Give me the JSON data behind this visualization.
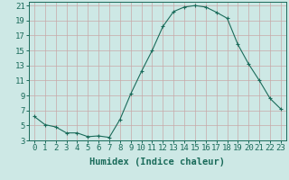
{
  "x": [
    0,
    1,
    2,
    3,
    4,
    5,
    6,
    7,
    8,
    9,
    10,
    11,
    12,
    13,
    14,
    15,
    16,
    17,
    18,
    19,
    20,
    21,
    22,
    23
  ],
  "y": [
    6.2,
    5.1,
    4.8,
    4.0,
    4.0,
    3.5,
    3.6,
    3.4,
    5.8,
    9.2,
    12.2,
    15.0,
    18.2,
    20.2,
    20.8,
    21.0,
    20.8,
    20.1,
    19.3,
    15.8,
    13.2,
    11.0,
    8.6,
    7.2
  ],
  "line_color": "#1a6b5a",
  "marker": "+",
  "marker_size": 3,
  "bg_color": "#cde8e5",
  "grid_color": "#c8a8a8",
  "xlabel": "Humidex (Indice chaleur)",
  "xlabel_fontsize": 7.5,
  "tick_fontsize": 6.5,
  "ylim": [
    3,
    21.5
  ],
  "xlim": [
    -0.5,
    23.5
  ],
  "yticks": [
    3,
    5,
    7,
    9,
    11,
    13,
    15,
    17,
    19,
    21
  ],
  "xticks": [
    0,
    1,
    2,
    3,
    4,
    5,
    6,
    7,
    8,
    9,
    10,
    11,
    12,
    13,
    14,
    15,
    16,
    17,
    18,
    19,
    20,
    21,
    22,
    23
  ],
  "tick_color": "#1a6b5a",
  "spine_color": "#1a6b5a"
}
